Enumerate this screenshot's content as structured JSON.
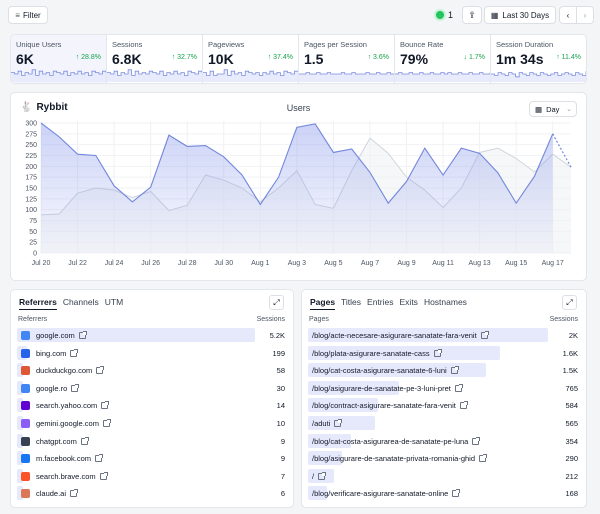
{
  "topbar": {
    "filter_label": "Filter",
    "live_count": "1",
    "range_label": "Last 30 Days",
    "prev": "‹",
    "next": "›"
  },
  "stats": [
    {
      "label": "Unique Users",
      "value": "6K",
      "change": "↑ 28.8%",
      "spark": [
        6,
        5,
        7,
        4,
        6,
        5,
        8,
        4,
        7,
        5,
        6,
        4,
        7,
        6,
        5,
        7,
        4,
        6,
        5,
        7,
        5,
        6,
        4,
        7,
        6,
        5,
        7,
        6
      ]
    },
    {
      "label": "Sessions",
      "value": "6.8K",
      "change": "↑ 32.7%",
      "spark": [
        6,
        5,
        7,
        4,
        6,
        5,
        8,
        4,
        7,
        5,
        6,
        5,
        7,
        6,
        5,
        7,
        4,
        6,
        5,
        7,
        5,
        6,
        4,
        7,
        6,
        5,
        7,
        6
      ]
    },
    {
      "label": "Pageviews",
      "value": "10K",
      "change": "↑ 37.4%",
      "spark": [
        6,
        4,
        7,
        4,
        5,
        5,
        8,
        4,
        7,
        5,
        6,
        4,
        7,
        6,
        5,
        6,
        4,
        6,
        5,
        7,
        5,
        6,
        4,
        7,
        6,
        5,
        7,
        7
      ]
    },
    {
      "label": "Pages per Session",
      "value": "1.5",
      "change": "↑ 3.6%",
      "spark": [
        5,
        5,
        6,
        5,
        5,
        6,
        5,
        5,
        6,
        5,
        5,
        5,
        6,
        5,
        5,
        6,
        5,
        5,
        5,
        6,
        5,
        5,
        6,
        5,
        5,
        6,
        5,
        5
      ]
    },
    {
      "label": "Bounce Rate",
      "value": "79%",
      "change": "↓ 1.7%",
      "spark": [
        5,
        6,
        5,
        5,
        6,
        5,
        5,
        6,
        5,
        5,
        6,
        5,
        5,
        6,
        5,
        6,
        5,
        5,
        6,
        5,
        5,
        6,
        5,
        5,
        6,
        5,
        5,
        6
      ]
    },
    {
      "label": "Session Duration",
      "value": "1m 34s",
      "change": "↑ 11.4%",
      "spark": [
        5,
        4,
        6,
        5,
        4,
        6,
        5,
        3,
        6,
        5,
        4,
        6,
        5,
        4,
        6,
        5,
        4,
        5,
        6,
        4,
        5,
        6,
        5,
        4,
        6,
        5,
        4,
        7
      ]
    }
  ],
  "main": {
    "brand": "Rybbit",
    "title": "Users",
    "interval": "Day"
  },
  "chart_data": {
    "type": "area",
    "title": "Users",
    "x": [
      "Jul 20",
      "Jul 21",
      "Jul 22",
      "Jul 23",
      "Jul 24",
      "Jul 25",
      "Jul 26",
      "Jul 27",
      "Jul 28",
      "Jul 29",
      "Jul 30",
      "Jul 31",
      "Aug 1",
      "Aug 2",
      "Aug 3",
      "Aug 4",
      "Aug 5",
      "Aug 6",
      "Aug 7",
      "Aug 8",
      "Aug 9",
      "Aug 10",
      "Aug 11",
      "Aug 12",
      "Aug 13",
      "Aug 14",
      "Aug 15",
      "Aug 16",
      "Aug 17",
      "Aug 18"
    ],
    "xticks": [
      "Jul 20",
      "Jul 22",
      "Jul 24",
      "Jul 26",
      "Jul 28",
      "Jul 30",
      "Aug 1",
      "Aug 3",
      "Aug 5",
      "Aug 7",
      "Aug 9",
      "Aug 11",
      "Aug 13",
      "Aug 15",
      "Aug 17"
    ],
    "ylim": [
      0,
      300
    ],
    "yticks": [
      0,
      25,
      50,
      75,
      100,
      125,
      150,
      175,
      200,
      225,
      250,
      275,
      300
    ],
    "series": [
      {
        "values": [
          300,
          268,
          228,
          225,
          155,
          118,
          152,
          272,
          246,
          248,
          222,
          180,
          112,
          175,
          290,
          298,
          232,
          240,
          186,
          115,
          165,
          242,
          180,
          242,
          230,
          185,
          115,
          177,
          275,
          198
        ]
      },
      {
        "values": [
          88,
          90,
          138,
          150,
          145,
          128,
          142,
          98,
          110,
          180,
          168,
          150,
          118,
          150,
          190,
          112,
          103,
          190,
          265,
          230,
          175,
          145,
          105,
          150,
          232,
          242,
          218,
          187,
          228,
          198
        ]
      }
    ]
  },
  "referrers": {
    "tabs": [
      "Referrers",
      "Channels",
      "UTM"
    ],
    "col_name": "Referrers",
    "col_value": "Sessions",
    "rows": [
      {
        "name": "google.com",
        "value": "5.2K",
        "share": 1.0,
        "icon": "google-icon",
        "color": "#4285f4"
      },
      {
        "name": "bing.com",
        "value": "199",
        "share": 0.04,
        "icon": "bing-icon",
        "color": "#2563eb"
      },
      {
        "name": "duckduckgo.com",
        "value": "58",
        "share": 0.015,
        "icon": "duckduckgo-icon",
        "color": "#de5833"
      },
      {
        "name": "google.ro",
        "value": "30",
        "share": 0.008,
        "icon": "google-icon",
        "color": "#4285f4"
      },
      {
        "name": "search.yahoo.com",
        "value": "14",
        "share": 0.004,
        "icon": "yahoo-icon",
        "color": "#6001d2"
      },
      {
        "name": "gemini.google.com",
        "value": "10",
        "share": 0.003,
        "icon": "gemini-icon",
        "color": "#8b5cf6"
      },
      {
        "name": "chatgpt.com",
        "value": "9",
        "share": 0.003,
        "icon": "chatgpt-icon",
        "color": "#374151"
      },
      {
        "name": "m.facebook.com",
        "value": "9",
        "share": 0.003,
        "icon": "facebook-icon",
        "color": "#1877f2"
      },
      {
        "name": "search.brave.com",
        "value": "7",
        "share": 0.002,
        "icon": "brave-icon",
        "color": "#fb542b"
      },
      {
        "name": "claude.ai",
        "value": "6",
        "share": 0.002,
        "icon": "claude-icon",
        "color": "#d97757"
      }
    ]
  },
  "pages": {
    "tabs": [
      "Pages",
      "Titles",
      "Entries",
      "Exits",
      "Hostnames"
    ],
    "col_name": "Pages",
    "col_value": "Sessions",
    "rows": [
      {
        "name": "/blog/acte-necesare-asigurare-sanatate-fara-venit",
        "value": "2K",
        "share": 1.0
      },
      {
        "name": "/blog/plata-asigurare-sanatate-cass",
        "value": "1.6K",
        "share": 0.8
      },
      {
        "name": "/blog/cat-costa-asigurare-sanatate-6-luni",
        "value": "1.5K",
        "share": 0.74
      },
      {
        "name": "/blog/asigurare-de-sanatate-pe-3-luni-pret",
        "value": "765",
        "share": 0.38
      },
      {
        "name": "/blog/contract-asigurare-sanatate-fara-venit",
        "value": "584",
        "share": 0.29
      },
      {
        "name": "/aduti",
        "value": "565",
        "share": 0.28
      },
      {
        "name": "/blog/cat-costa-asigurarea-de-sanatate-pe-luna",
        "value": "354",
        "share": 0.18
      },
      {
        "name": "/blog/asigurare-de-sanatate-privata-romania-ghid",
        "value": "290",
        "share": 0.14
      },
      {
        "name": "/",
        "value": "212",
        "share": 0.11
      },
      {
        "name": "/blog/verificare-asigurare-sanatate-online",
        "value": "168",
        "share": 0.08
      }
    ]
  }
}
